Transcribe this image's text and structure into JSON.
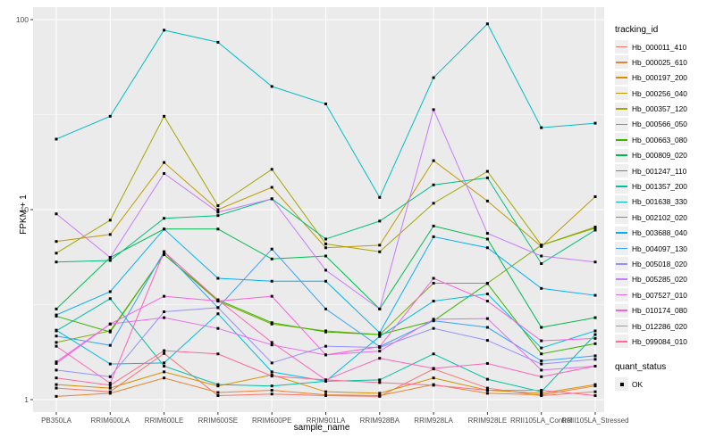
{
  "chart": {
    "y_axis_title": "FPKM + 1",
    "x_axis_title": "sample_name",
    "legend_title": "tracking_id",
    "legend2_title": "quant_status",
    "legend2_item_label": "OK"
  },
  "chart_data": {
    "type": "line",
    "title": "",
    "xlabel": "sample_name",
    "ylabel": "FPKM + 1",
    "y_scale": "log10",
    "ylim": [
      1,
      100
    ],
    "y_ticks": [
      1,
      10,
      100
    ],
    "legend_position": "right",
    "grid": "on",
    "panel_background": "#EBEBEB",
    "grid_color": "#FFFFFF",
    "tick_label_color": "#4D4D4D",
    "marker": {
      "shape": "square",
      "color": "#000000",
      "size": 3,
      "legend_label": "OK"
    },
    "categories": [
      "PB350LA",
      "RRIM600LA",
      "RRIM600LE",
      "RRIM600SE",
      "RRIM600PE",
      "RRIM901LA",
      "RRIM928BA",
      "RRIM928LA",
      "RRIM928LE",
      "RRII105LA_Control",
      "RRII105LA_Stressed"
    ],
    "series": [
      {
        "name": "Hb_000011_410",
        "color": "#F8766D",
        "values": [
          1.15,
          1.1,
          1.75,
          1.05,
          1.07,
          1.05,
          1.04,
          1.45,
          1.15,
          1.05,
          1.1
        ]
      },
      {
        "name": "Hb_000025_610",
        "color": "#EA8331",
        "values": [
          1.04,
          1.08,
          1.3,
          1.09,
          1.12,
          1.06,
          1.05,
          1.2,
          1.08,
          1.06,
          1.18
        ]
      },
      {
        "name": "Hb_000197_200",
        "color": "#D89000",
        "values": [
          1.2,
          1.15,
          1.4,
          1.18,
          1.35,
          1.1,
          1.08,
          1.3,
          1.12,
          1.08,
          1.2
        ]
      },
      {
        "name": "Hb_000256_040",
        "color": "#C09B00",
        "values": [
          6.8,
          7.4,
          17.7,
          10.0,
          13.1,
          6.3,
          6.5,
          18.1,
          11.1,
          6.4,
          11.7
        ]
      },
      {
        "name": "Hb_000357_120",
        "color": "#A3A500",
        "values": [
          5.9,
          8.8,
          31.0,
          10.5,
          16.3,
          6.6,
          6.0,
          10.8,
          15.9,
          6.5,
          8.1
        ]
      },
      {
        "name": "Hb_000566_050",
        "color": "#7CAE00",
        "values": [
          2.0,
          2.3,
          5.8,
          3.3,
          2.5,
          2.3,
          2.2,
          4.1,
          4.1,
          6.5,
          8.0
        ]
      },
      {
        "name": "Hb_000663_080",
        "color": "#39B600",
        "values": [
          2.75,
          2.27,
          5.8,
          3.35,
          2.54,
          2.27,
          2.2,
          2.6,
          4.08,
          1.74,
          1.97
        ]
      },
      {
        "name": "Hb_000809_020",
        "color": "#00BB4E",
        "values": [
          3.0,
          5.6,
          7.9,
          7.9,
          5.5,
          5.7,
          3.0,
          8.2,
          7.0,
          2.4,
          2.7
        ]
      },
      {
        "name": "Hb_001247_110",
        "color": "#00BF7D",
        "values": [
          5.3,
          5.4,
          9.0,
          9.3,
          11.4,
          7.0,
          8.7,
          13.5,
          14.7,
          5.2,
          7.8
        ]
      },
      {
        "name": "Hb_001357_200",
        "color": "#00C1A3",
        "values": [
          2.3,
          3.4,
          1.5,
          1.2,
          1.18,
          1.25,
          1.27,
          1.74,
          1.28,
          1.1,
          2.2
        ]
      },
      {
        "name": "Hb_001638_330",
        "color": "#00BFC4",
        "values": [
          23.5,
          31.0,
          88.0,
          76.0,
          44.5,
          36.0,
          11.6,
          49.5,
          95.0,
          27.0,
          28.5
        ]
      },
      {
        "name": "Hb_002102_020",
        "color": "#00BAE0",
        "values": [
          2.32,
          1.54,
          1.56,
          2.83,
          1.4,
          1.25,
          2.15,
          3.3,
          3.6,
          1.87,
          2.3
        ]
      },
      {
        "name": "Hb_003688_040",
        "color": "#00B0F6",
        "values": [
          2.79,
          3.7,
          7.9,
          4.35,
          4.2,
          4.2,
          2.25,
          7.2,
          6.3,
          3.85,
          3.54
        ]
      },
      {
        "name": "Hb_004097_130",
        "color": "#35A2FF",
        "values": [
          2.16,
          1.93,
          6.0,
          3.05,
          6.2,
          3.0,
          1.9,
          2.6,
          2.4,
          1.6,
          1.7
        ]
      },
      {
        "name": "Hb_005018_020",
        "color": "#9590FF",
        "values": [
          1.43,
          1.32,
          2.9,
          3.05,
          1.56,
          1.91,
          1.88,
          2.37,
          2.05,
          1.54,
          1.63
        ]
      },
      {
        "name": "Hb_005285_020",
        "color": "#C77CFF",
        "values": [
          9.5,
          5.6,
          15.5,
          9.7,
          11.4,
          4.8,
          3.0,
          33.6,
          7.5,
          5.7,
          5.3
        ]
      },
      {
        "name": "Hb_007527_010",
        "color": "#E76BF3",
        "values": [
          1.55,
          2.5,
          2.7,
          2.37,
          1.94,
          1.72,
          1.8,
          2.65,
          2.67,
          1.43,
          1.5
        ]
      },
      {
        "name": "Hb_010174_080",
        "color": "#FA62DB",
        "values": [
          1.58,
          2.5,
          3.5,
          3.3,
          3.5,
          1.72,
          1.9,
          4.35,
          3.3,
          2.04,
          2.1
        ]
      },
      {
        "name": "Hb_012286_020",
        "color": "#FF62BC",
        "values": [
          1.91,
          1.22,
          6.0,
          3.35,
          2.0,
          1.27,
          1.65,
          1.46,
          1.55,
          1.32,
          1.5
        ]
      },
      {
        "name": "Hb_099084_010",
        "color": "#FF6A98",
        "values": [
          1.3,
          1.19,
          1.81,
          1.74,
          1.33,
          1.27,
          1.23,
          1.19,
          1.12,
          1.12,
          1.05
        ]
      }
    ],
    "quant_status_legend": {
      "title": "quant_status",
      "items": [
        "OK"
      ]
    }
  }
}
